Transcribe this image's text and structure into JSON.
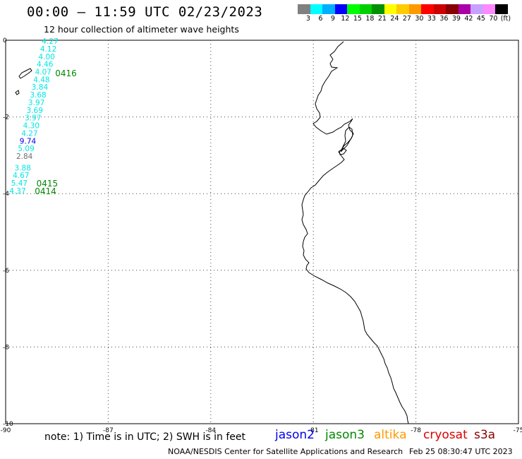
{
  "header": {
    "title": "00:00 – 11:59 UTC 02/23/2023",
    "subtitle": "12 hour collection of altimeter wave heights"
  },
  "colorbar": {
    "colors": [
      "#808080",
      "#00ffff",
      "#00b0ff",
      "#0000ff",
      "#00ff00",
      "#00d000",
      "#009000",
      "#ffff00",
      "#ffcc00",
      "#ff9900",
      "#ff0000",
      "#cc0000",
      "#880000",
      "#aa00aa",
      "#c8a0ff",
      "#ff88ff",
      "#000000"
    ],
    "labels": [
      "3",
      "6",
      "9",
      "12",
      "15",
      "18",
      "21",
      "24",
      "27",
      "30",
      "33",
      "36",
      "39",
      "42",
      "45",
      "70",
      "(ft)"
    ]
  },
  "axes": {
    "x_ticks": [
      {
        "value": -90,
        "label": "-90"
      },
      {
        "value": -87,
        "label": "-87"
      },
      {
        "value": -84,
        "label": "-84"
      },
      {
        "value": -81,
        "label": "-81"
      },
      {
        "value": -78,
        "label": "-78"
      },
      {
        "value": -75,
        "label": "-75"
      }
    ],
    "y_ticks": [
      {
        "value": 0,
        "label": "0"
      },
      {
        "value": -2,
        "label": "-2"
      },
      {
        "value": -4,
        "label": "-4"
      },
      {
        "value": -6,
        "label": "-6"
      },
      {
        "value": -8,
        "label": "-8"
      },
      {
        "value": -10,
        "label": "-10"
      }
    ],
    "xlim": [
      -90,
      -75
    ],
    "ylim": [
      -10,
      0
    ]
  },
  "chart_data": {
    "type": "scatter",
    "xlim": [
      -90,
      -75
    ],
    "ylim": [
      -10,
      0
    ],
    "x_ticks": [
      -90,
      -87,
      -84,
      -81,
      -78,
      -75
    ],
    "y_ticks": [
      0,
      -2,
      -4,
      -6,
      -8,
      -10
    ],
    "grid": true,
    "points": [
      {
        "lon": -88.7,
        "lat": -0.02,
        "value": "4.27",
        "color": "#00e5e5"
      },
      {
        "lon": -88.75,
        "lat": -0.22,
        "value": "4.12",
        "color": "#00e5e5"
      },
      {
        "lon": -88.8,
        "lat": -0.42,
        "value": "4.00",
        "color": "#00e5e5"
      },
      {
        "lon": -88.85,
        "lat": -0.62,
        "value": "4.46",
        "color": "#00e5e5"
      },
      {
        "lon": -88.9,
        "lat": -0.82,
        "value": "4.07",
        "color": "#00e5e5"
      },
      {
        "lon": -88.95,
        "lat": -1.02,
        "value": "4.48",
        "color": "#00e5e5"
      },
      {
        "lon": -89.0,
        "lat": -1.22,
        "value": "3.84",
        "color": "#00e5e5"
      },
      {
        "lon": -89.05,
        "lat": -1.42,
        "value": "3.68",
        "color": "#00e5e5"
      },
      {
        "lon": -89.1,
        "lat": -1.62,
        "value": "3.97",
        "color": "#00e5e5"
      },
      {
        "lon": -89.15,
        "lat": -1.82,
        "value": "3.69",
        "color": "#00e5e5"
      },
      {
        "lon": -89.2,
        "lat": -2.02,
        "value": "3.97",
        "color": "#00e5e5"
      },
      {
        "lon": -89.25,
        "lat": -2.22,
        "value": "4.30",
        "color": "#00e5e5"
      },
      {
        "lon": -89.3,
        "lat": -2.42,
        "value": "4.27",
        "color": "#00e5e5"
      },
      {
        "lon": -89.35,
        "lat": -2.62,
        "value": "9.74",
        "color": "#0000ee"
      },
      {
        "lon": -89.4,
        "lat": -2.82,
        "value": "5.09",
        "color": "#00e5e5"
      },
      {
        "lon": -89.45,
        "lat": -3.02,
        "value": "2.84",
        "color": "#707070"
      },
      {
        "lon": -89.5,
        "lat": -3.32,
        "value": "3.88",
        "color": "#00e5e5"
      },
      {
        "lon": -89.55,
        "lat": -3.52,
        "value": "4.67",
        "color": "#00e5e5"
      },
      {
        "lon": -89.6,
        "lat": -3.72,
        "value": "5.47",
        "color": "#00e5e5"
      },
      {
        "lon": -89.65,
        "lat": -3.92,
        "value": "4.37",
        "color": "#00e5e5"
      }
    ],
    "pass_labels": [
      {
        "lon": -88.55,
        "lat": -0.85,
        "label": "0416",
        "color": "#008800"
      },
      {
        "lon": -89.1,
        "lat": -3.72,
        "label": "0415",
        "color": "#008800"
      },
      {
        "lon": -89.15,
        "lat": -3.92,
        "label": "0414",
        "color": "#008800"
      }
    ]
  },
  "footer": {
    "note": "note: 1) Time is in UTC; 2) SWH is in feet",
    "missions": [
      {
        "name": "jason2",
        "color": "#0000ee"
      },
      {
        "name": "jason3",
        "color": "#008800"
      },
      {
        "name": "altika",
        "color": "#ff9900"
      },
      {
        "name": "cryosat",
        "color": "#dd0000"
      },
      {
        "name": "s3a",
        "color": "#880000"
      }
    ],
    "credit": "NOAA/NESDIS Center for Satellite Applications and Research",
    "stamp": "Feb 25 08:30:47 UTC 2023"
  }
}
